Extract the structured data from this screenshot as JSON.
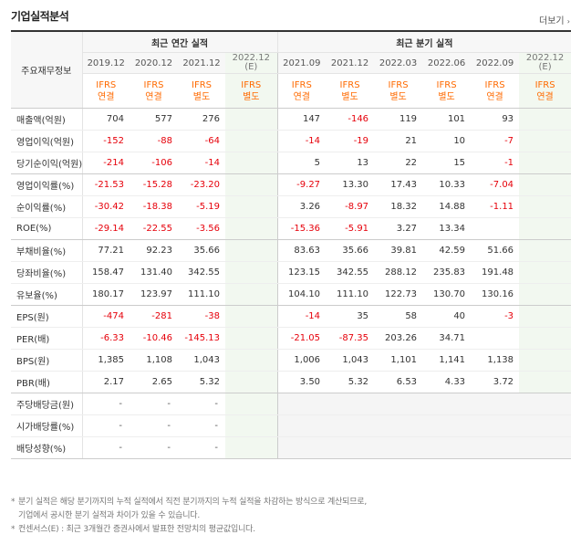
{
  "section_title": "기업실적분석",
  "more_link": "더보기",
  "header": {
    "corner": "주요재무정보",
    "annual_group": "최근 연간 실적",
    "quarter_group": "최근 분기 실적",
    "annual_periods": [
      {
        "period": "2019.12",
        "basis": "IFRS",
        "type": "연결"
      },
      {
        "period": "2020.12",
        "basis": "IFRS",
        "type": "연결"
      },
      {
        "period": "2021.12",
        "basis": "IFRS",
        "type": "별도"
      },
      {
        "period": "2022.12",
        "est": "(E)",
        "basis": "IFRS",
        "type": "별도"
      }
    ],
    "quarter_periods": [
      {
        "period": "2021.09",
        "basis": "IFRS",
        "type": "연결"
      },
      {
        "period": "2021.12",
        "basis": "IFRS",
        "type": "별도"
      },
      {
        "period": "2022.03",
        "basis": "IFRS",
        "type": "별도"
      },
      {
        "period": "2022.06",
        "basis": "IFRS",
        "type": "별도"
      },
      {
        "period": "2022.09",
        "basis": "IFRS",
        "type": "연결"
      },
      {
        "period": "2022.12",
        "est": "(E)",
        "basis": "IFRS",
        "type": "연결"
      }
    ]
  },
  "rows": [
    {
      "label": "매출액(억원)",
      "annual": [
        "704",
        "577",
        "276",
        ""
      ],
      "quarter": [
        "147",
        "-146",
        "119",
        "101",
        "93",
        ""
      ]
    },
    {
      "label": "영업이익(억원)",
      "annual": [
        "-152",
        "-88",
        "-64",
        ""
      ],
      "quarter": [
        "-14",
        "-19",
        "21",
        "10",
        "-7",
        ""
      ]
    },
    {
      "label": "당기순이익(억원)",
      "annual": [
        "-214",
        "-106",
        "-14",
        ""
      ],
      "quarter": [
        "5",
        "13",
        "22",
        "15",
        "-1",
        ""
      ]
    },
    {
      "label": "영업이익률(%)",
      "annual": [
        "-21.53",
        "-15.28",
        "-23.20",
        ""
      ],
      "quarter": [
        "-9.27",
        "13.30",
        "17.43",
        "10.33",
        "-7.04",
        ""
      ]
    },
    {
      "label": "순이익률(%)",
      "annual": [
        "-30.42",
        "-18.38",
        "-5.19",
        ""
      ],
      "quarter": [
        "3.26",
        "-8.97",
        "18.32",
        "14.88",
        "-1.11",
        ""
      ]
    },
    {
      "label": "ROE(%)",
      "annual": [
        "-29.14",
        "-22.55",
        "-3.56",
        ""
      ],
      "quarter": [
        "-15.36",
        "-5.91",
        "3.27",
        "13.34",
        "",
        ""
      ]
    },
    {
      "label": "부채비율(%)",
      "annual": [
        "77.21",
        "92.23",
        "35.66",
        ""
      ],
      "quarter": [
        "83.63",
        "35.66",
        "39.81",
        "42.59",
        "51.66",
        ""
      ]
    },
    {
      "label": "당좌비율(%)",
      "annual": [
        "158.47",
        "131.40",
        "342.55",
        ""
      ],
      "quarter": [
        "123.15",
        "342.55",
        "288.12",
        "235.83",
        "191.48",
        ""
      ]
    },
    {
      "label": "유보율(%)",
      "annual": [
        "180.17",
        "123.97",
        "111.10",
        ""
      ],
      "quarter": [
        "104.10",
        "111.10",
        "122.73",
        "130.70",
        "130.16",
        ""
      ]
    },
    {
      "label": "EPS(원)",
      "annual": [
        "-474",
        "-281",
        "-38",
        ""
      ],
      "quarter": [
        "-14",
        "35",
        "58",
        "40",
        "-3",
        ""
      ]
    },
    {
      "label": "PER(배)",
      "annual": [
        "-6.33",
        "-10.46",
        "-145.13",
        ""
      ],
      "quarter": [
        "-21.05",
        "-87.35",
        "203.26",
        "34.71",
        "",
        ""
      ]
    },
    {
      "label": "BPS(원)",
      "annual": [
        "1,385",
        "1,108",
        "1,043",
        ""
      ],
      "quarter": [
        "1,006",
        "1,043",
        "1,101",
        "1,141",
        "1,138",
        ""
      ]
    },
    {
      "label": "PBR(배)",
      "annual": [
        "2.17",
        "2.65",
        "5.32",
        ""
      ],
      "quarter": [
        "3.50",
        "5.32",
        "6.53",
        "4.33",
        "3.72",
        ""
      ]
    },
    {
      "label": "주당배당금(원)",
      "annual": [
        "-",
        "-",
        "-",
        ""
      ],
      "quarter": [
        "",
        "",
        "",
        "",
        "",
        ""
      ]
    },
    {
      "label": "시가배당률(%)",
      "annual": [
        "-",
        "-",
        "-",
        ""
      ],
      "quarter": [
        "",
        "",
        "",
        "",
        "",
        ""
      ]
    },
    {
      "label": "배당성향(%)",
      "annual": [
        "-",
        "-",
        "-",
        ""
      ],
      "quarter": [
        "",
        "",
        "",
        "",
        "",
        ""
      ]
    }
  ],
  "footnotes": [
    "분기 실적은 해당 분기까지의 누적 실적에서 직전 분기까지의 누적 실적을 차감하는 방식으로 계산되므로,",
    "기업에서 공시한 분기 실적과 차이가 있을 수 있습니다.",
    "컨센서스(E) : 최근 3개월간 증권사에서 발표한 전망치의 평균값입니다."
  ],
  "footnote_marker": "*",
  "more_arrow": "›"
}
